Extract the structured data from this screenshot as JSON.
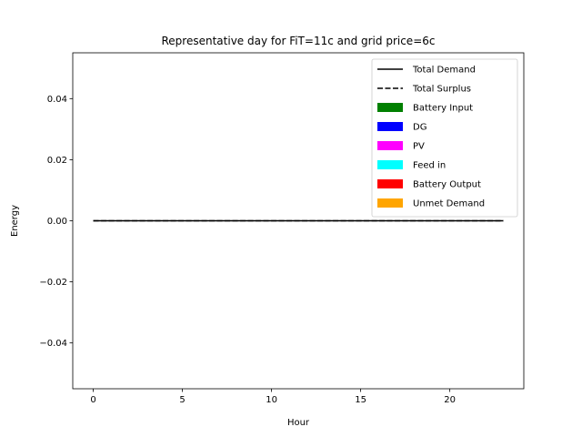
{
  "chart_data": {
    "type": "line",
    "title": "Representative day for FiT=11c and grid price=6c",
    "xlabel": "Hour",
    "ylabel": "Energy",
    "xlim": [
      -1.15,
      24.15
    ],
    "ylim": [
      -0.055,
      0.055
    ],
    "x_ticks": [
      0,
      5,
      10,
      15,
      20
    ],
    "x_tick_labels": [
      "0",
      "5",
      "10",
      "15",
      "20"
    ],
    "y_ticks": [
      -0.04,
      -0.02,
      0.0,
      0.02,
      0.04
    ],
    "y_tick_labels": [
      "−0.04",
      "−0.02",
      "0.00",
      "0.02",
      "0.04"
    ],
    "grid": false,
    "legend_position": "top-right",
    "x": [
      0,
      1,
      2,
      3,
      4,
      5,
      6,
      7,
      8,
      9,
      10,
      11,
      12,
      13,
      14,
      15,
      16,
      17,
      18,
      19,
      20,
      21,
      22,
      23
    ],
    "series": [
      {
        "name": "Total Demand",
        "kind": "line",
        "style": "solid",
        "color": "#000000",
        "values": [
          0,
          0,
          0,
          0,
          0,
          0,
          0,
          0,
          0,
          0,
          0,
          0,
          0,
          0,
          0,
          0,
          0,
          0,
          0,
          0,
          0,
          0,
          0,
          0
        ]
      },
      {
        "name": "Total Surplus",
        "kind": "line",
        "style": "dashed",
        "color": "#000000",
        "values": [
          0,
          0,
          0,
          0,
          0,
          0,
          0,
          0,
          0,
          0,
          0,
          0,
          0,
          0,
          0,
          0,
          0,
          0,
          0,
          0,
          0,
          0,
          0,
          0
        ]
      },
      {
        "name": "Battery Input",
        "kind": "bar",
        "color": "#008000",
        "values": [
          0,
          0,
          0,
          0,
          0,
          0,
          0,
          0,
          0,
          0,
          0,
          0,
          0,
          0,
          0,
          0,
          0,
          0,
          0,
          0,
          0,
          0,
          0,
          0
        ]
      },
      {
        "name": "DG",
        "kind": "bar",
        "color": "#0000ff",
        "values": [
          0,
          0,
          0,
          0,
          0,
          0,
          0,
          0,
          0,
          0,
          0,
          0,
          0,
          0,
          0,
          0,
          0,
          0,
          0,
          0,
          0,
          0,
          0,
          0
        ]
      },
      {
        "name": "PV",
        "kind": "bar",
        "color": "#ff00ff",
        "values": [
          0,
          0,
          0,
          0,
          0,
          0,
          0,
          0,
          0,
          0,
          0,
          0,
          0,
          0,
          0,
          0,
          0,
          0,
          0,
          0,
          0,
          0,
          0,
          0
        ]
      },
      {
        "name": "Feed in",
        "kind": "bar",
        "color": "#00ffff",
        "values": [
          0,
          0,
          0,
          0,
          0,
          0,
          0,
          0,
          0,
          0,
          0,
          0,
          0,
          0,
          0,
          0,
          0,
          0,
          0,
          0,
          0,
          0,
          0,
          0
        ]
      },
      {
        "name": "Battery Output",
        "kind": "bar",
        "color": "#ff0000",
        "values": [
          0,
          0,
          0,
          0,
          0,
          0,
          0,
          0,
          0,
          0,
          0,
          0,
          0,
          0,
          0,
          0,
          0,
          0,
          0,
          0,
          0,
          0,
          0,
          0
        ]
      },
      {
        "name": "Unmet Demand",
        "kind": "bar",
        "color": "#ffa500",
        "values": [
          0,
          0,
          0,
          0,
          0,
          0,
          0,
          0,
          0,
          0,
          0,
          0,
          0,
          0,
          0,
          0,
          0,
          0,
          0,
          0,
          0,
          0,
          0,
          0
        ]
      }
    ]
  }
}
